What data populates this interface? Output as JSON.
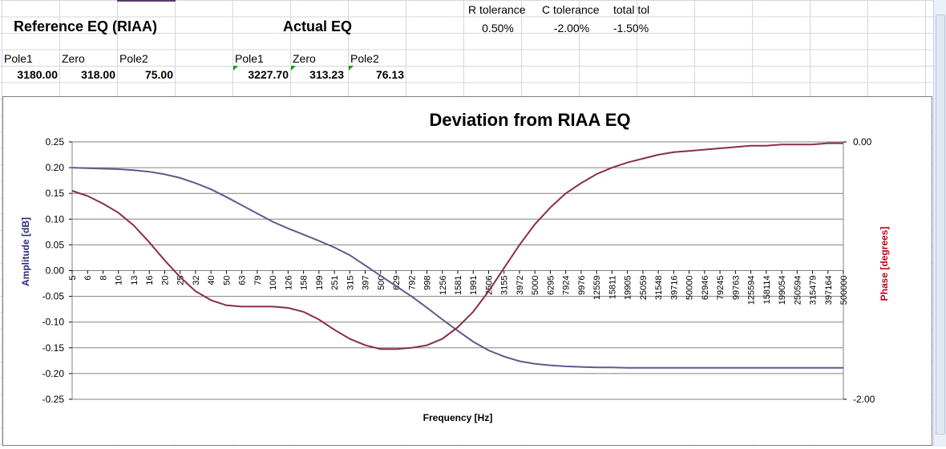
{
  "sheet": {
    "ref_title": "Reference EQ (RIAA)",
    "actual_title": "Actual EQ",
    "r_tol_label": "R tolerance",
    "c_tol_label": "C tolerance",
    "total_tol_label": "total tol",
    "r_tol_value": "0.50%",
    "c_tol_value": "-2.00%",
    "total_tol_value": "-1.50%",
    "ref": {
      "pole1_label": "Pole1",
      "zero_label": "Zero",
      "pole2_label": "Pole2",
      "pole1": "3180.00",
      "zero": "318.00",
      "pole2": "75.00"
    },
    "actual": {
      "pole1_label": "Pole1",
      "zero_label": "Zero",
      "pole2_label": "Pole2",
      "pole1": "3227.70",
      "zero": "313.23",
      "pole2": "76.13"
    }
  },
  "chart_data": {
    "type": "line",
    "title": "Deviation from RIAA EQ",
    "xlabel": "Frequency [Hz]",
    "ylabel": "Amplitude [dB]",
    "y2label": "Phase [degrees]",
    "ylim": [
      -0.25,
      0.25
    ],
    "y_ticks": [
      "0.25",
      "0.20",
      "0.15",
      "0.10",
      "0.05",
      "0.00",
      "-0.05",
      "-0.10",
      "-0.15",
      "-0.20",
      "-0.25"
    ],
    "y2lim": [
      -2.0,
      0.0
    ],
    "y2_ticks": [
      "0.00",
      "-2.00"
    ],
    "grid": true,
    "categories": [
      "5",
      "6",
      "8",
      "10",
      "13",
      "16",
      "20",
      "25",
      "32",
      "40",
      "50",
      "63",
      "79",
      "100",
      "126",
      "158",
      "199",
      "251",
      "315",
      "397",
      "500",
      "629",
      "792",
      "998",
      "1256",
      "1581",
      "1991",
      "2506",
      "3155",
      "3972",
      "5000",
      "6295",
      "7924",
      "9976",
      "12559",
      "15811",
      "19905",
      "25059",
      "31548",
      "39716",
      "50000",
      "62946",
      "79245",
      "99763",
      "125594",
      "158114",
      "199054",
      "250594",
      "315479",
      "397164",
      "500000"
    ],
    "series": [
      {
        "axis": "left",
        "color": "#5a5d8c",
        "values": [
          0.2,
          0.199,
          0.198,
          0.197,
          0.195,
          0.192,
          0.187,
          0.18,
          0.17,
          0.158,
          0.143,
          0.127,
          0.111,
          0.095,
          0.082,
          0.07,
          0.058,
          0.045,
          0.03,
          0.01,
          -0.01,
          -0.03,
          -0.05,
          -0.072,
          -0.095,
          -0.117,
          -0.138,
          -0.155,
          -0.167,
          -0.176,
          -0.181,
          -0.184,
          -0.186,
          -0.187,
          -0.188,
          -0.188,
          -0.189,
          -0.189,
          -0.189,
          -0.189,
          -0.189,
          -0.189,
          -0.189,
          -0.189,
          -0.189,
          -0.189,
          -0.189,
          -0.189,
          -0.189,
          -0.189,
          -0.189
        ]
      },
      {
        "axis": "right",
        "color": "#8b2c4f",
        "values": [
          -0.38,
          -0.42,
          -0.48,
          -0.55,
          -0.65,
          -0.78,
          -0.92,
          -1.05,
          -1.16,
          -1.23,
          -1.27,
          -1.28,
          -1.28,
          -1.28,
          -1.29,
          -1.32,
          -1.38,
          -1.46,
          -1.53,
          -1.58,
          -1.61,
          -1.61,
          -1.6,
          -1.58,
          -1.53,
          -1.44,
          -1.32,
          -1.16,
          -0.98,
          -0.8,
          -0.64,
          -0.51,
          -0.4,
          -0.32,
          -0.25,
          -0.2,
          -0.16,
          -0.13,
          -0.1,
          -0.08,
          -0.07,
          -0.06,
          -0.05,
          -0.04,
          -0.03,
          -0.03,
          -0.02,
          -0.02,
          -0.02,
          -0.01,
          -0.01
        ]
      }
    ]
  }
}
